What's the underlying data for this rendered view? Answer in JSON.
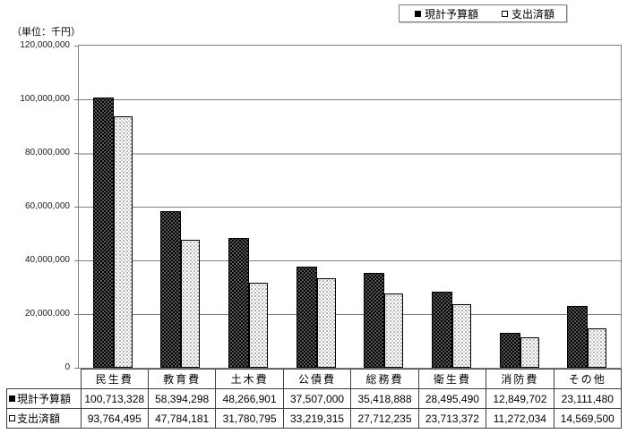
{
  "unit_label": "（単位：千円）",
  "legend": {
    "series1_label": "現計予算額",
    "series2_label": "支出済額"
  },
  "chart_data": {
    "type": "bar",
    "title": "",
    "unit_label": "（単位：千円）",
    "categories": [
      "民生費",
      "教育費",
      "土木費",
      "公債費",
      "総務費",
      "衛生費",
      "消防費",
      "その他"
    ],
    "series": [
      {
        "name": "現計予算額",
        "marker": "filled-square",
        "color": "#000000",
        "values": [
          100713328,
          58394298,
          48266901,
          37507000,
          35418888,
          28495490,
          12849702,
          23111480
        ],
        "values_formatted": [
          "100,713,328",
          "58,394,298",
          "48,266,901",
          "37,507,000",
          "35,418,888",
          "28,495,490",
          "12,849,702",
          "23,111,480"
        ]
      },
      {
        "name": "支出済額",
        "marker": "open-square",
        "color": "#ffffff",
        "values": [
          93764495,
          47784181,
          31780795,
          33219315,
          27712235,
          23713372,
          11272034,
          14569500
        ],
        "values_formatted": [
          "93,764,495",
          "47,784,181",
          "31,780,795",
          "33,219,315",
          "27,712,235",
          "23,713,372",
          "11,272,034",
          "14,569,500"
        ]
      }
    ],
    "ylim": [
      0,
      120000000
    ],
    "ytick_interval": 20000000,
    "yticks": [
      "0",
      "20,000,000",
      "40,000,000",
      "60,000,000",
      "80,000,000",
      "100,000,000",
      "120,000,000"
    ],
    "grid": "horizontal",
    "gridline_light_value": 80000000,
    "legend_position": "top-right",
    "colors": {
      "grid": "#808080",
      "grid_light": "#b8b8b8",
      "plot_border": "#7f7f7f",
      "table_border": "#404040",
      "bar_fill_series1": "#000000",
      "bar_fill_series2": "#ffffff"
    }
  }
}
